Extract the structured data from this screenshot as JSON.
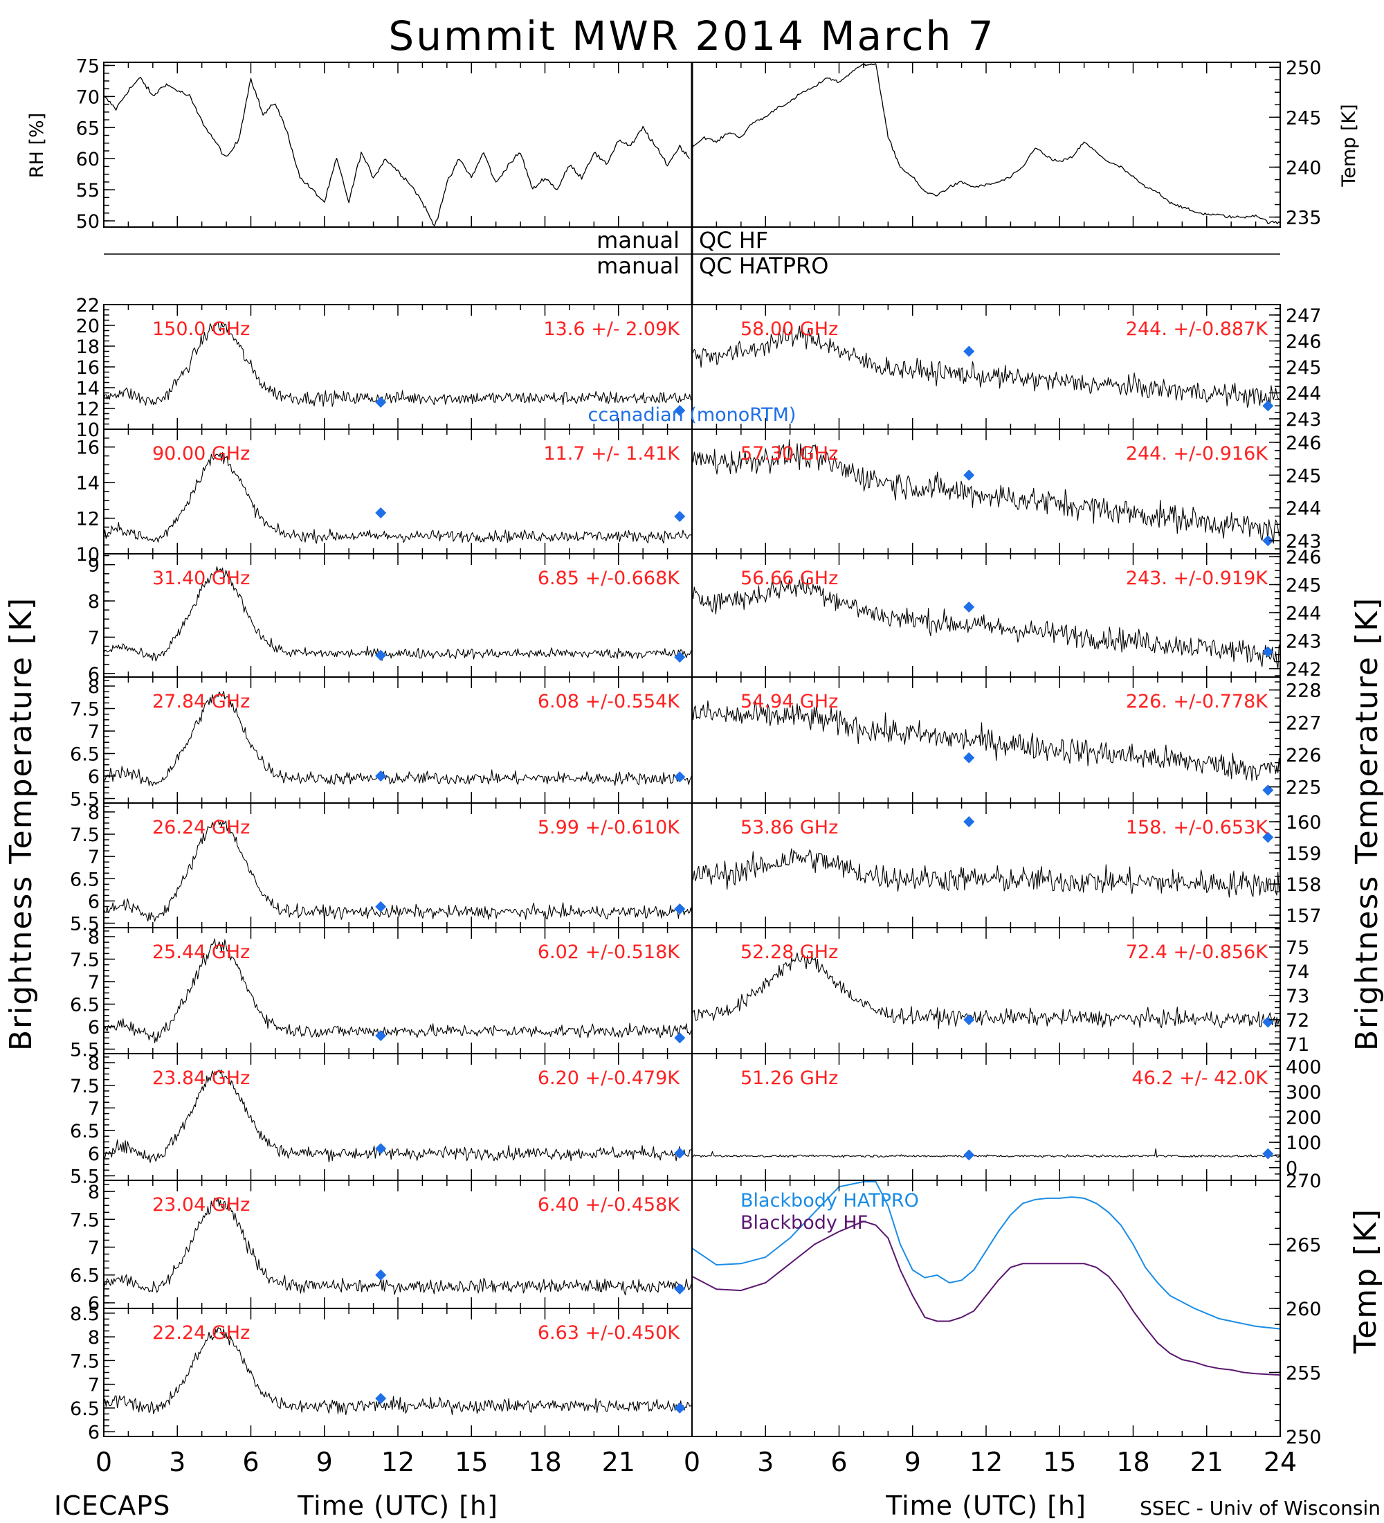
{
  "title": "Summit MWR 2014 March  7",
  "axis_labels": {
    "rh": "RH [%]",
    "temp_top": "Temp [K]",
    "tb_left": "Brightness Temperature [K]",
    "tb_right": "Brightness Temperature [K]",
    "temp_bb": "Temp [K]",
    "x_left": "Time (UTC) [h]",
    "x_right": "Time (UTC) [h]"
  },
  "x_ticks": [
    "0",
    "3",
    "6",
    "9",
    "12",
    "15",
    "18",
    "21",
    "24"
  ],
  "qc": {
    "hf_left": "manual",
    "hf_right": "QC HF",
    "hatpro_left": "manual",
    "hatpro_right": "QC HATPRO"
  },
  "footer": {
    "project": "ICECAPS",
    "credit": "SSEC - Univ of Wisconsin"
  },
  "legend": {
    "model": "ccanadian (monoRTM)",
    "bb_hatpro": "Blackbody HATPRO",
    "bb_hf": "Blackbody HF"
  },
  "colors": {
    "freq_label": "#ff2020",
    "marker": "#1e6fe8",
    "bb_hatpro": "#1a8ce6",
    "bb_hf": "#5b1670",
    "trace": "#000000"
  },
  "chart_data": {
    "type": "line",
    "x_range": [
      0,
      24
    ],
    "x_unit": "h (UTC)",
    "grid": false,
    "meteo": [
      {
        "name": "RH",
        "ylim": [
          49,
          75.5
        ],
        "yticks": [
          50,
          55,
          60,
          65,
          70,
          75
        ],
        "x": [
          0,
          0.5,
          1,
          1.5,
          2,
          2.5,
          3,
          3.5,
          4,
          4.5,
          5,
          5.5,
          6,
          6.5,
          7,
          7.5,
          8,
          8.5,
          9,
          9.5,
          10,
          10.5,
          11,
          11.5,
          12,
          12.5,
          13,
          13.5,
          14,
          14.5,
          15,
          15.5,
          16,
          16.5,
          17,
          17.5,
          18,
          18.5,
          19,
          19.5,
          20,
          20.5,
          21,
          21.5,
          22,
          22.5,
          23,
          23.5,
          23.9
        ],
        "y": [
          70,
          68,
          71,
          73,
          70,
          72,
          71,
          70,
          66,
          63,
          60,
          63,
          73,
          67,
          69,
          64,
          57,
          55,
          53,
          60,
          53,
          61,
          57,
          60,
          58,
          56,
          53,
          49,
          56,
          60,
          57,
          61,
          56,
          59,
          61,
          55,
          57,
          55,
          59,
          57,
          61,
          59,
          63,
          62,
          65,
          62,
          59,
          62,
          60
        ]
      },
      {
        "name": "Temp",
        "ylim": [
          234,
          250.5
        ],
        "yticks": [
          235,
          240,
          245,
          250
        ],
        "x": [
          0,
          0.5,
          1,
          1.5,
          2,
          2.5,
          3,
          3.5,
          4,
          4.5,
          5,
          5.5,
          6,
          6.5,
          7,
          7.2,
          7.5,
          7.8,
          8,
          8.5,
          9,
          9.5,
          10,
          10.5,
          11,
          11.5,
          12,
          12.5,
          13,
          13.5,
          14,
          14.5,
          15,
          15.5,
          16,
          16.5,
          17,
          17.5,
          18,
          18.5,
          19,
          19.5,
          20,
          20.5,
          21,
          21.5,
          22,
          22.5,
          23,
          23.5,
          24
        ],
        "y": [
          242,
          243,
          242.5,
          243.5,
          243,
          244.5,
          245,
          246,
          246.5,
          247.5,
          248,
          249,
          248.5,
          249.5,
          250.3,
          250.3,
          250.3,
          246,
          243,
          240,
          239,
          237.5,
          237.2,
          238,
          238.5,
          238,
          238.2,
          238.5,
          239,
          240,
          242,
          241,
          240.5,
          241,
          242.5,
          241.5,
          240.5,
          240,
          239,
          238,
          237.5,
          236.5,
          236,
          235.5,
          235.3,
          235.2,
          235,
          235,
          235.2,
          234.5,
          234.4
        ]
      }
    ],
    "left_channels": [
      {
        "freq": "150.0 GHz",
        "stat": "13.6 +/-  2.09K",
        "ylim": [
          10,
          22
        ],
        "yticks": [
          10,
          12,
          14,
          16,
          18,
          20,
          22
        ],
        "baseline": 13,
        "peak": 20,
        "noise": 1.6,
        "model": [
          [
            11.3,
            12.6
          ],
          [
            23.5,
            11.8
          ]
        ]
      },
      {
        "freq": "90.00 GHz",
        "stat": "11.7 +/-  1.41K",
        "ylim": [
          10,
          17
        ],
        "yticks": [
          10,
          12,
          14,
          16
        ],
        "baseline": 11,
        "peak": 15.5,
        "noise": 0.8,
        "model": [
          [
            11.3,
            12.3
          ],
          [
            23.5,
            12.1
          ]
        ]
      },
      {
        "freq": "31.40 GHz",
        "stat": "6.85 +/-0.668K",
        "ylim": [
          5.9,
          9.3
        ],
        "yticks": [
          6,
          7,
          8,
          9
        ],
        "baseline": 6.55,
        "peak": 8.8,
        "noise": 0.35,
        "model": [
          [
            11.3,
            6.5
          ],
          [
            23.5,
            6.45
          ]
        ]
      },
      {
        "freq": "27.84 GHz",
        "stat": "6.08 +/-0.554K",
        "ylim": [
          5.4,
          8.2
        ],
        "yticks": [
          5.5,
          6.0,
          6.5,
          7.0,
          7.5,
          8.0
        ],
        "baseline": 5.95,
        "peak": 7.8,
        "noise": 0.35,
        "model": [
          [
            11.3,
            6.0
          ],
          [
            23.5,
            5.98
          ]
        ]
      },
      {
        "freq": "26.24 GHz",
        "stat": "5.99 +/-0.610K",
        "ylim": [
          5.4,
          8.2
        ],
        "yticks": [
          5.5,
          6.0,
          6.5,
          7.0,
          7.5,
          8.0
        ],
        "baseline": 5.75,
        "peak": 7.8,
        "noise": 0.35,
        "model": [
          [
            11.3,
            5.87
          ],
          [
            23.5,
            5.82
          ]
        ]
      },
      {
        "freq": "25.44 GHz",
        "stat": "6.02 +/-0.518K",
        "ylim": [
          5.4,
          8.2
        ],
        "yticks": [
          5.5,
          6.0,
          6.5,
          7.0,
          7.5,
          8.0
        ],
        "baseline": 5.9,
        "peak": 7.8,
        "noise": 0.35,
        "model": [
          [
            11.3,
            5.8
          ],
          [
            23.5,
            5.75
          ]
        ]
      },
      {
        "freq": "23.84 GHz",
        "stat": "6.20 +/-0.479K",
        "ylim": [
          5.4,
          8.2
        ],
        "yticks": [
          5.5,
          6.0,
          6.5,
          7.0,
          7.5,
          8.0
        ],
        "baseline": 6.0,
        "peak": 7.8,
        "noise": 0.35,
        "model": [
          [
            11.3,
            6.1
          ],
          [
            23.5,
            6.0
          ]
        ]
      },
      {
        "freq": "23.04 GHz",
        "stat": "6.40 +/-0.458K",
        "ylim": [
          5.9,
          8.2
        ],
        "yticks": [
          6.0,
          6.5,
          7.0,
          7.5,
          8.0
        ],
        "baseline": 6.3,
        "peak": 7.8,
        "noise": 0.3,
        "model": [
          [
            11.3,
            6.5
          ],
          [
            23.5,
            6.25
          ]
        ]
      },
      {
        "freq": "22.24 GHz",
        "stat": "6.63 +/-0.450K",
        "ylim": [
          5.9,
          8.6
        ],
        "yticks": [
          6.0,
          6.5,
          7.0,
          7.5,
          8.0,
          8.5
        ],
        "baseline": 6.55,
        "peak": 8.1,
        "noise": 0.35,
        "model": [
          [
            11.3,
            6.7
          ],
          [
            23.5,
            6.5
          ]
        ]
      }
    ],
    "right_channels": [
      {
        "freq": "58.00 GHz",
        "stat": "244. +/-0.887K",
        "ylim": [
          242.6,
          247.4
        ],
        "yticks": [
          243,
          244,
          245,
          246,
          247
        ],
        "start": 245.5,
        "peak": 246.5,
        "end": 243.8,
        "noise": 1.0,
        "model": [
          [
            11.3,
            245.6
          ],
          [
            23.5,
            243.5
          ]
        ]
      },
      {
        "freq": "57.30 GHz",
        "stat": "244. +/-0.916K",
        "ylim": [
          242.6,
          246.4
        ],
        "yticks": [
          243,
          244,
          245,
          246
        ],
        "start": 245.5,
        "peak": 246,
        "end": 243.3,
        "noise": 1.0,
        "model": [
          [
            11.3,
            245
          ],
          [
            23.5,
            243
          ]
        ]
      },
      {
        "freq": "56.66 GHz",
        "stat": "243. +/-0.919K",
        "ylim": [
          241.7,
          246.1
        ],
        "yticks": [
          242,
          243,
          244,
          245,
          246
        ],
        "start": 244.5,
        "peak": 245.3,
        "end": 242.5,
        "noise": 1.0,
        "model": [
          [
            11.3,
            244.2
          ],
          [
            23.5,
            242.6
          ]
        ]
      },
      {
        "freq": "54.94 GHz",
        "stat": "226. +/-0.778K",
        "ylim": [
          224.5,
          228.4
        ],
        "yticks": [
          225,
          226,
          227,
          228
        ],
        "start": 227.3,
        "peak": 227.5,
        "end": 225.5,
        "noise": 1.0,
        "model": [
          [
            11.3,
            225.9
          ],
          [
            23.5,
            224.9
          ]
        ]
      },
      {
        "freq": "53.86 GHz",
        "stat": "158. +/-0.653K",
        "ylim": [
          156.6,
          160.6
        ],
        "yticks": [
          157,
          158,
          159,
          160
        ],
        "start": 158.3,
        "peak": 158.9,
        "end": 158,
        "noise": 1.0,
        "model": [
          [
            11.3,
            160
          ],
          [
            23.5,
            159.5
          ]
        ]
      },
      {
        "freq": "52.28 GHz",
        "stat": "72.4 +/-0.856K",
        "ylim": [
          70.6,
          75.8
        ],
        "yticks": [
          71,
          72,
          73,
          74,
          75
        ],
        "start": 72.2,
        "peak": 74.5,
        "end": 72,
        "noise": 0.8,
        "model": [
          [
            11.3,
            72
          ],
          [
            23.5,
            71.9
          ]
        ]
      },
      {
        "freq": "51.26 GHz",
        "stat": "46.2 +/- 42.0K",
        "ylim": [
          -50,
          450
        ],
        "yticks": [
          0,
          100,
          200,
          300,
          400
        ],
        "flat": 46,
        "noise": 8,
        "model": [
          [
            11.3,
            50
          ],
          [
            23.5,
            55
          ]
        ]
      }
    ],
    "blackbody": {
      "ylim": [
        250,
        270
      ],
      "yticks": [
        250,
        255,
        260,
        265,
        270
      ],
      "x": [
        0,
        1,
        2,
        3,
        4,
        5,
        6,
        7,
        7.5,
        8,
        8.5,
        9,
        9.5,
        10,
        10.5,
        11,
        11.5,
        12,
        12.5,
        13,
        13.5,
        14,
        14.5,
        15,
        15.5,
        16,
        16.5,
        17,
        17.5,
        18,
        18.5,
        19,
        19.5,
        20,
        20.5,
        21,
        21.5,
        22,
        22.5,
        23,
        24
      ],
      "series": [
        {
          "name": "Blackbody HATPRO",
          "y": [
            264.7,
            263.4,
            263.5,
            264.0,
            265.5,
            267.5,
            269.5,
            270.3,
            270.2,
            268.0,
            265.0,
            263.0,
            262.4,
            262.6,
            262.0,
            262.2,
            263.0,
            264.5,
            266.0,
            267.3,
            268.2,
            268.5,
            268.6,
            268.6,
            268.7,
            268.6,
            268.2,
            267.5,
            266.5,
            265.0,
            263.2,
            262.0,
            261.0,
            260.5,
            260.0,
            259.6,
            259.2,
            259.0,
            258.8,
            258.6,
            258.4
          ]
        },
        {
          "name": "Blackbody HF",
          "y": [
            262.5,
            261.5,
            261.4,
            262.0,
            263.5,
            265.0,
            266.0,
            266.8,
            266.5,
            265.5,
            263.0,
            261.0,
            259.3,
            259.0,
            259.0,
            259.3,
            259.8,
            261.0,
            262.2,
            263.2,
            263.5,
            263.5,
            263.5,
            263.5,
            263.5,
            263.5,
            263.2,
            262.5,
            261.3,
            259.8,
            258.5,
            257.3,
            256.5,
            256.0,
            255.8,
            255.5,
            255.3,
            255.2,
            255.0,
            254.9,
            254.8
          ]
        }
      ]
    }
  }
}
